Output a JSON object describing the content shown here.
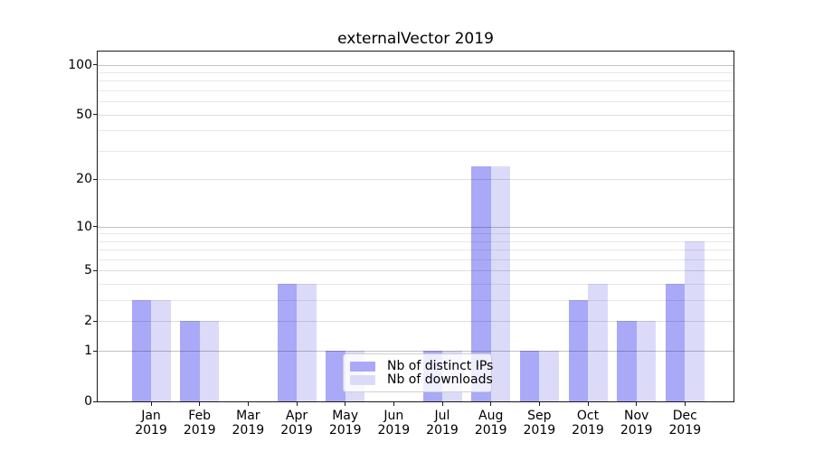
{
  "title": "externalVector 2019",
  "chart_data": {
    "type": "bar",
    "title": "externalVector 2019",
    "categories": [
      "Jan 2019",
      "Feb 2019",
      "Mar 2019",
      "Apr 2019",
      "May 2019",
      "Jun 2019",
      "Jul 2019",
      "Aug 2019",
      "Sep 2019",
      "Oct 2019",
      "Nov 2019",
      "Dec 2019"
    ],
    "series": [
      {
        "name": "Nb of distinct IPs",
        "color": "#a9a9f8",
        "values": [
          3,
          2,
          0,
          4,
          1,
          0,
          1,
          24,
          1,
          3,
          2,
          4
        ]
      },
      {
        "name": "Nb of downloads",
        "color": "#dbdbf9",
        "values": [
          3,
          2,
          0,
          4,
          1,
          0,
          1,
          24,
          1,
          4,
          2,
          8
        ]
      }
    ],
    "yscale": "log10(value+1)",
    "ylim": [
      0,
      120
    ],
    "y_major_ticks": [
      0,
      1,
      2,
      5,
      10,
      20,
      50,
      100
    ],
    "y_minor_gridlines": [
      3,
      4,
      6,
      7,
      8,
      9,
      30,
      40,
      60,
      70,
      80,
      90
    ],
    "y_emphasized_gridlines": [
      1,
      10,
      100
    ],
    "grid": true,
    "legend_position": "inside-lower-center"
  },
  "colors": {
    "series_ips": "#a9a9f8",
    "series_downloads": "#dbdbf9",
    "grid_major": "#c2c2c2",
    "grid_minor": "#e8e8e8",
    "spine": "#1a1a1a"
  }
}
